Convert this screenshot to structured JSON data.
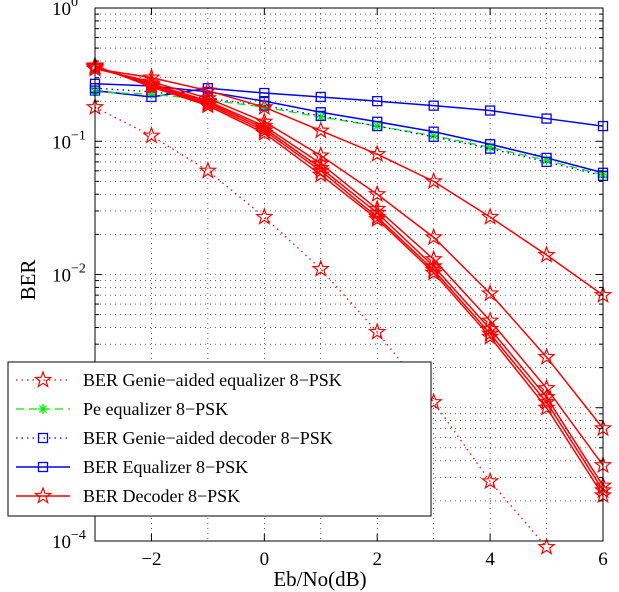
{
  "chart_data": {
    "type": "line",
    "xlabel": "Eb/No(dB)",
    "ylabel": "BER",
    "xlim": [
      -3,
      6
    ],
    "ylim": [
      0.0001,
      1
    ],
    "yscale": "log",
    "grid": true,
    "legend_position": "bottom-left",
    "x_ticks": [
      "−2",
      "0",
      "2",
      "4",
      "6"
    ],
    "x_tick_values": [
      -2,
      0,
      2,
      4,
      6
    ],
    "y_ticks": [
      {
        "value": 1,
        "base": "10",
        "exp": "0"
      },
      {
        "value": 0.1,
        "base": "10",
        "exp": "−1"
      },
      {
        "value": 0.01,
        "base": "10",
        "exp": "−2"
      },
      {
        "value": 0.001,
        "base": "10",
        "exp": "−3"
      },
      {
        "value": 0.0001,
        "base": "10",
        "exp": "−4"
      }
    ],
    "legend": [
      {
        "label": "BER Genie−aided equalizer 8−PSK",
        "color": "#ff0000",
        "dash": "dotted",
        "marker": "star"
      },
      {
        "label": "Pe equalizer 8−PSK",
        "color": "#00ee00",
        "dash": "dashed",
        "marker": "asterisk"
      },
      {
        "label": "BER Genie−aided decoder 8−PSK",
        "color": "#0000ff",
        "dash": "dotted",
        "marker": "square"
      },
      {
        "label": "BER Equalizer 8−PSK",
        "color": "#0000ff",
        "dash": "solid",
        "marker": "square"
      },
      {
        "label": "BER Decoder 8−PSK",
        "color": "#ff0000",
        "dash": "solid",
        "marker": "star"
      }
    ],
    "series": [
      {
        "color": "#0000ff",
        "dash": "solid",
        "marker": "square",
        "x": [
          -3,
          -2,
          -1,
          0,
          1,
          2,
          3,
          4,
          5,
          6
        ],
        "y": [
          0.24,
          0.215,
          0.25,
          0.23,
          0.215,
          0.2,
          0.185,
          0.17,
          0.148,
          0.13
        ]
      },
      {
        "color": "#0000ff",
        "dash": "solid",
        "marker": "square",
        "x": [
          -3,
          -2,
          -1,
          0,
          1,
          2,
          3,
          4,
          5,
          6
        ],
        "y": [
          0.27,
          0.26,
          0.235,
          0.2,
          0.165,
          0.14,
          0.118,
          0.095,
          0.075,
          0.058
        ]
      },
      {
        "color": "#00ee00",
        "dash": "dashed",
        "marker": "asterisk",
        "x": [
          -3,
          -2,
          -1,
          0,
          1,
          2,
          3,
          4,
          5,
          6
        ],
        "y": [
          0.235,
          0.225,
          0.205,
          0.18,
          0.152,
          0.13,
          0.11,
          0.09,
          0.072,
          0.056
        ]
      },
      {
        "color": "#0000ff",
        "dash": "dotted",
        "marker": "square",
        "x": [
          -3,
          -2,
          -1,
          0,
          1,
          2,
          3,
          4,
          5,
          6
        ],
        "y": [
          0.25,
          0.235,
          0.21,
          0.185,
          0.155,
          0.13,
          0.108,
          0.088,
          0.07,
          0.055
        ]
      },
      {
        "color": "#ff0000",
        "dash": "dotted",
        "marker": "star",
        "x": [
          -3,
          -2,
          -1,
          0,
          1,
          2,
          3,
          4,
          5
        ],
        "y": [
          0.18,
          0.11,
          0.06,
          0.027,
          0.011,
          0.0037,
          0.0011,
          0.00028,
          9e-05
        ]
      },
      {
        "color": "#ff0000",
        "dash": "solid",
        "marker": "star",
        "x": [
          -3,
          -2,
          -1,
          0,
          1,
          2,
          3,
          4,
          5,
          6
        ],
        "y": [
          0.35,
          0.3,
          0.24,
          0.18,
          0.12,
          0.08,
          0.05,
          0.027,
          0.014,
          0.007
        ]
      },
      {
        "color": "#ff0000",
        "dash": "solid",
        "marker": "star",
        "x": [
          -3,
          -2,
          -1,
          0,
          1,
          2,
          3,
          4,
          5,
          6
        ],
        "y": [
          0.35,
          0.28,
          0.21,
          0.14,
          0.078,
          0.04,
          0.019,
          0.0072,
          0.0024,
          0.0007
        ]
      },
      {
        "color": "#ff0000",
        "dash": "solid",
        "marker": "star",
        "x": [
          -3,
          -2,
          -1,
          0,
          1,
          2,
          3,
          4,
          5,
          6
        ],
        "y": [
          0.36,
          0.27,
          0.2,
          0.13,
          0.068,
          0.031,
          0.013,
          0.0045,
          0.0014,
          0.00037
        ]
      },
      {
        "color": "#ff0000",
        "dash": "solid",
        "marker": "star",
        "x": [
          -3,
          -2,
          -1,
          0,
          1,
          2,
          3,
          4,
          5,
          6
        ],
        "y": [
          0.36,
          0.265,
          0.195,
          0.125,
          0.063,
          0.029,
          0.0115,
          0.0039,
          0.0012,
          0.00026
        ]
      },
      {
        "color": "#ff0000",
        "dash": "solid",
        "marker": "star",
        "x": [
          -3,
          -2,
          -1,
          0,
          1,
          2,
          3,
          4,
          5,
          6
        ],
        "y": [
          0.365,
          0.26,
          0.19,
          0.12,
          0.06,
          0.027,
          0.0108,
          0.0036,
          0.0011,
          0.00024
        ]
      },
      {
        "color": "#ff0000",
        "dash": "solid",
        "marker": "star",
        "x": [
          -3,
          -2,
          -1,
          0,
          1,
          2,
          3,
          4,
          5,
          6
        ],
        "y": [
          0.37,
          0.255,
          0.185,
          0.115,
          0.056,
          0.026,
          0.0103,
          0.0034,
          0.001,
          0.00022
        ]
      }
    ]
  }
}
